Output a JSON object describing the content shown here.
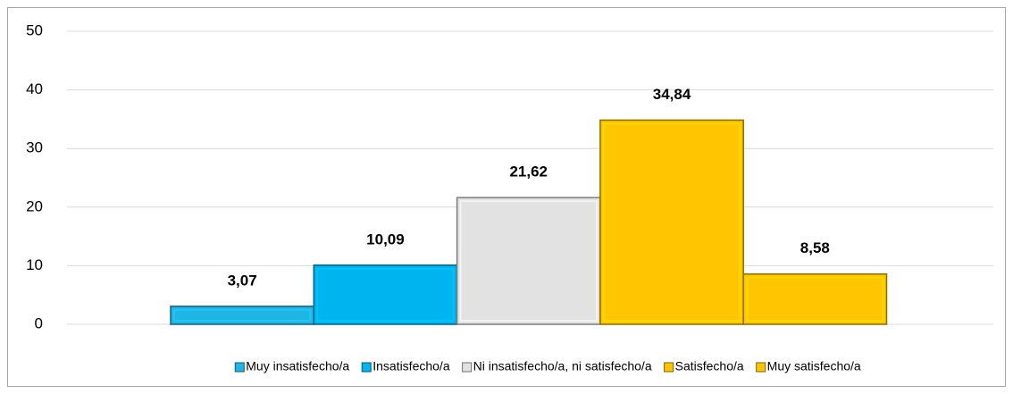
{
  "chart_data": {
    "type": "bar",
    "series": [
      {
        "name": "Muy insatisfecho/a",
        "color": "#1fb6e6",
        "values": [
          3.07
        ],
        "value_labels": [
          "3,07"
        ]
      },
      {
        "name": "Insatisfecho/a",
        "color": "#00b4f0",
        "values": [
          10.09
        ],
        "value_labels": [
          "10,09"
        ]
      },
      {
        "name": "Ni insatisfecho/a, ni satisfecho/a",
        "color": "#e2e2e2",
        "values": [
          21.62
        ],
        "value_labels": [
          "21,62"
        ]
      },
      {
        "name": "Satisfecho/a",
        "color": "#ffc600",
        "values": [
          34.84
        ],
        "value_labels": [
          "34,84"
        ]
      },
      {
        "name": "Muy satisfecho/a",
        "color": "#ffc600",
        "values": [
          8.58
        ],
        "value_labels": [
          "8,58"
        ]
      }
    ],
    "ylim": [
      0,
      50
    ],
    "yticks": [
      0,
      10,
      20,
      30,
      40,
      50
    ],
    "grid": true,
    "legend": "bottom"
  }
}
